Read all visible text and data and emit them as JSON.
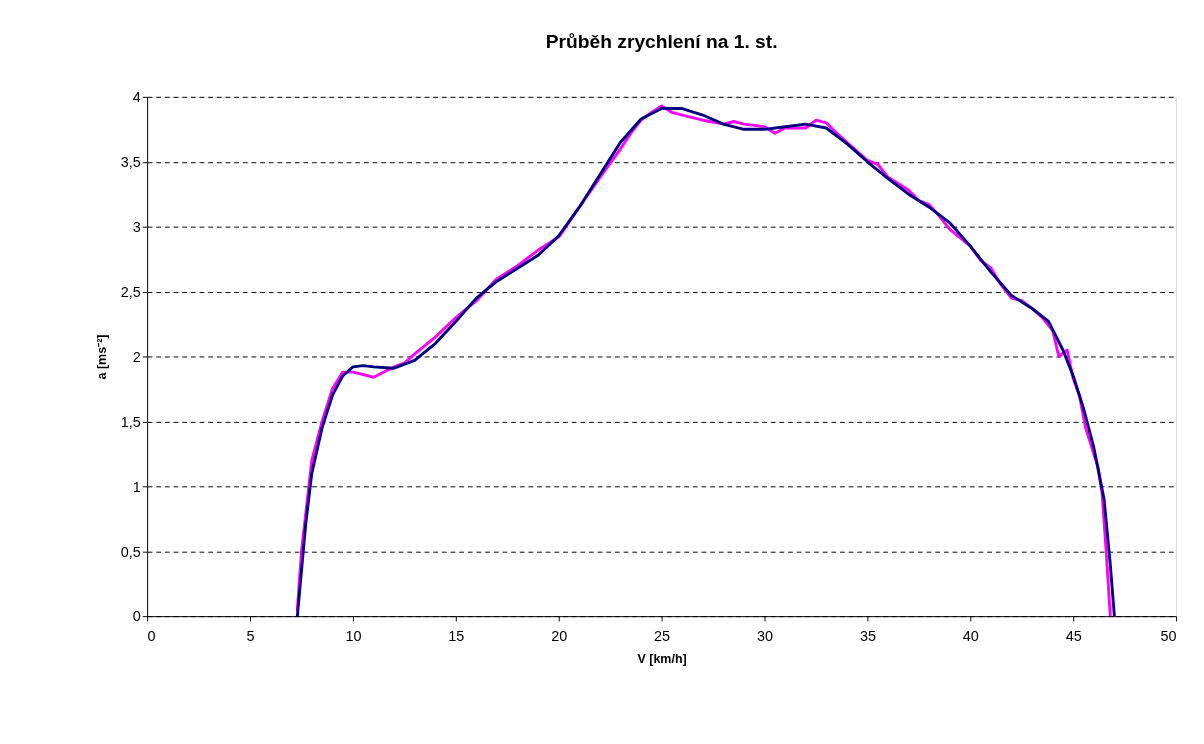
{
  "chart_data": {
    "type": "line",
    "title": "Průběh zrychlení na 1. st.",
    "xlabel": "V [km/h]",
    "ylabel": "a [ms⁻²]",
    "xlim": [
      0,
      50
    ],
    "xticks": [
      0,
      5,
      10,
      15,
      20,
      25,
      30,
      35,
      40,
      45,
      50
    ],
    "ylim": [
      0,
      4
    ],
    "yticks": [
      0,
      {
        "value": 0.5,
        "label": "0,5"
      },
      1,
      {
        "value": 1.5,
        "label": "1,5"
      },
      2,
      {
        "value": 2.5,
        "label": "2,5"
      },
      3,
      {
        "value": 3.5,
        "label": "3,5"
      },
      4
    ],
    "grid": "y",
    "legend": false,
    "line_style": "solid",
    "series": [
      {
        "color": "#ff00ff",
        "x": [
          7.3,
          7.5,
          8,
          8.5,
          9,
          9.5,
          10,
          10.5,
          11,
          11.5,
          12,
          12.5,
          13,
          14,
          15,
          16,
          17,
          18,
          19,
          20,
          21,
          22,
          23,
          23.5,
          24,
          24.5,
          25,
          25.5,
          26,
          27,
          28,
          28.5,
          29,
          30,
          30.5,
          31,
          32,
          32.5,
          33,
          33.5,
          34,
          35,
          35.5,
          36,
          37,
          37.5,
          38,
          38.5,
          39,
          40,
          40.5,
          41,
          41.5,
          42,
          42.5,
          43,
          43.5,
          44,
          44.3,
          44.7,
          45,
          45.3,
          45.6,
          45.9,
          46.2,
          46.4,
          46.6,
          46.8
        ],
        "values": [
          0.05,
          0.5,
          1.2,
          1.5,
          1.75,
          1.88,
          1.88,
          1.86,
          1.84,
          1.88,
          1.92,
          1.95,
          2.02,
          2.15,
          2.3,
          2.43,
          2.6,
          2.7,
          2.82,
          2.92,
          3.15,
          3.38,
          3.6,
          3.72,
          3.82,
          3.88,
          3.93,
          3.88,
          3.86,
          3.82,
          3.79,
          3.81,
          3.79,
          3.77,
          3.72,
          3.76,
          3.76,
          3.82,
          3.8,
          3.72,
          3.65,
          3.51,
          3.48,
          3.38,
          3.28,
          3.2,
          3.17,
          3.08,
          2.98,
          2.85,
          2.74,
          2.68,
          2.55,
          2.45,
          2.43,
          2.37,
          2.3,
          2.2,
          2.0,
          2.05,
          1.83,
          1.7,
          1.45,
          1.3,
          1.15,
          0.95,
          0.5,
          0
        ]
      },
      {
        "color": "#000080",
        "x": [
          7.3,
          7.7,
          8,
          8.5,
          9,
          9.5,
          10,
          10.5,
          11,
          12,
          13,
          14,
          15,
          16,
          17,
          18,
          19,
          20,
          21,
          22,
          23,
          24,
          25,
          26,
          27,
          28,
          29,
          30,
          31,
          32,
          33,
          34,
          35,
          36,
          37,
          38,
          39,
          40,
          41,
          42,
          43,
          43.8,
          44.5,
          45,
          45.5,
          46,
          46.5,
          46.8,
          47
        ],
        "values": [
          0,
          0.7,
          1.1,
          1.45,
          1.7,
          1.85,
          1.92,
          1.93,
          1.92,
          1.91,
          1.97,
          2.1,
          2.27,
          2.45,
          2.58,
          2.68,
          2.78,
          2.93,
          3.15,
          3.4,
          3.65,
          3.83,
          3.91,
          3.91,
          3.86,
          3.79,
          3.75,
          3.75,
          3.77,
          3.79,
          3.76,
          3.64,
          3.5,
          3.37,
          3.25,
          3.15,
          3.03,
          2.85,
          2.65,
          2.47,
          2.37,
          2.27,
          2.05,
          1.85,
          1.6,
          1.3,
          0.9,
          0.4,
          0
        ]
      }
    ]
  }
}
